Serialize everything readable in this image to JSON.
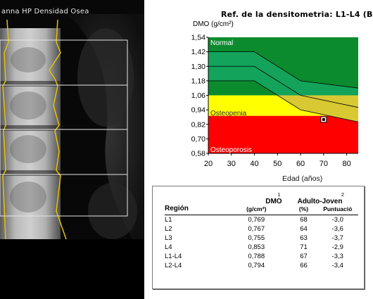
{
  "scan": {
    "title": "anna HP Densidad Osea"
  },
  "chart": {
    "title": "Ref. de la densitometria: L1-L4 (B",
    "ylabel": "DMO (g/cm²)",
    "xlabel": "Edad (años)",
    "zone_labels": {
      "normal": "Normal",
      "osteopenia": "Osteopenia",
      "osteoporosis": "Osteoporosis"
    },
    "colors": {
      "normal": "#0b8b2e",
      "reference_band": "#13a35a",
      "osteopenia": "#ffff00",
      "osteopenia_band": "#d8c832",
      "osteoporosis": "#ff0000"
    }
  },
  "chart_data": {
    "type": "line",
    "xlim": [
      20,
      85
    ],
    "ylim": [
      0.58,
      1.54
    ],
    "x_ticks": [
      "20",
      "30",
      "40",
      "50",
      "60",
      "70",
      "80"
    ],
    "y_ticks": [
      "1,54",
      "1,42",
      "1,30",
      "1,18",
      "1,06",
      "0,94",
      "0,82",
      "0,70",
      "0,58"
    ],
    "thresholds": {
      "osteopenia_upper": 1.06,
      "osteoporosis_upper": 0.89
    },
    "reference_curves": {
      "x": [
        20,
        40,
        60,
        85
      ],
      "upper": [
        1.42,
        1.42,
        1.18,
        1.12
      ],
      "mean": [
        1.3,
        1.3,
        1.06,
        0.96
      ],
      "lower": [
        1.18,
        1.18,
        0.94,
        0.84
      ]
    },
    "patient_point": {
      "x": 70,
      "y": 0.86
    },
    "grid": true
  },
  "results": {
    "headers": {
      "region": "Región",
      "dmo": "DMO",
      "dmo_units": "(g/cm²)",
      "dmo_note": "1",
      "adult": "Adulto-Joven",
      "adult_note": "2",
      "adult_pct": "(%)",
      "adult_score": "Puntuació"
    },
    "rows": [
      {
        "region": "L1",
        "dmo": "0,769",
        "pct": "68",
        "score": "-3,0"
      },
      {
        "region": "L2",
        "dmo": "0,767",
        "pct": "64",
        "score": "-3,6"
      },
      {
        "region": "L3",
        "dmo": "0,755",
        "pct": "63",
        "score": "-3,7"
      },
      {
        "region": "L4",
        "dmo": "0,853",
        "pct": "71",
        "score": "-2,9"
      },
      {
        "region": "L1-L4",
        "dmo": "0,788",
        "pct": "67",
        "score": "-3,3"
      },
      {
        "region": "L2-L4",
        "dmo": "0,794",
        "pct": "66",
        "score": "-3,4"
      }
    ]
  }
}
